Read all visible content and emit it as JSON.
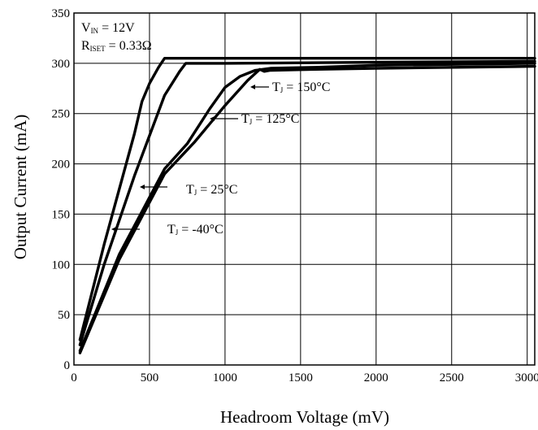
{
  "chart_data": {
    "type": "line",
    "xlabel": "Headroom Voltage (mV)",
    "ylabel": "Output Current (mA)",
    "xlim": [
      0,
      3050
    ],
    "ylim": [
      0,
      350
    ],
    "xticks": [
      0,
      500,
      1000,
      1500,
      2000,
      2500,
      3000
    ],
    "yticks": [
      0,
      50,
      100,
      150,
      200,
      250,
      300,
      350
    ],
    "grid": true,
    "conditions": {
      "vin": {
        "main": "V",
        "sub": "IN",
        "rest": " = 12V"
      },
      "riset": {
        "main": "R",
        "sub": "ISET",
        "rest": " = 0.33Ω"
      }
    },
    "series": [
      {
        "name": "TJ = -40°C",
        "label": {
          "main": "T",
          "sub": "J",
          "rest": " = -40°C"
        },
        "x": [
          40,
          200,
          400,
          450,
          500,
          560,
          600,
          700,
          1000,
          2000,
          3050
        ],
        "y": [
          25,
          120,
          230,
          262,
          280,
          296,
          305,
          305,
          305,
          305,
          305
        ]
      },
      {
        "name": "TJ = 25°C",
        "label": {
          "main": "T",
          "sub": "J",
          "rest": " = 25°C"
        },
        "x": [
          40,
          200,
          400,
          600,
          700,
          740,
          800,
          1000,
          2000,
          3050
        ],
        "y": [
          20,
          100,
          188,
          268,
          292,
          300,
          300,
          300,
          301,
          302
        ]
      },
      {
        "name": "TJ = 125°C",
        "label": {
          "main": "T",
          "sub": "J",
          "rest": " = 125°C"
        },
        "x": [
          40,
          300,
          600,
          750,
          900,
          1000,
          1100,
          1200,
          1300,
          1600,
          2000,
          3050
        ],
        "y": [
          14,
          110,
          195,
          220,
          255,
          276,
          287,
          293,
          295,
          296,
          298,
          300
        ]
      },
      {
        "name": "TJ = 150°C",
        "label": {
          "main": "T",
          "sub": "J",
          "rest": " = 150°C"
        },
        "x": [
          40,
          300,
          600,
          800,
          1000,
          1150,
          1230,
          1260,
          1300,
          1600,
          2000,
          3050
        ],
        "y": [
          12,
          105,
          190,
          222,
          258,
          283,
          294,
          292,
          293,
          294,
          295,
          297
        ]
      }
    ]
  }
}
